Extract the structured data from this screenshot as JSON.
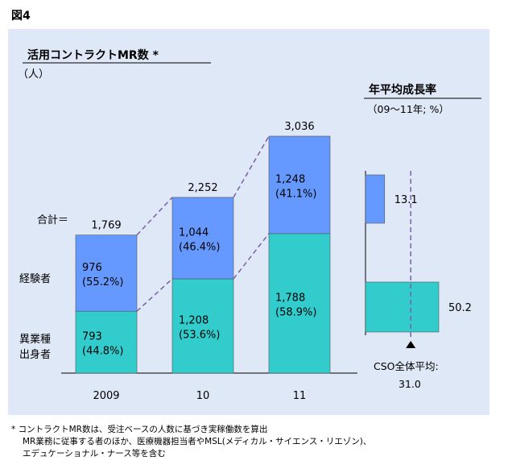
{
  "figure_label": "図4",
  "footnote": {
    "lines": [
      "* コントラクトMR数は、受注ベースの人数に基づき実稼働数を算出",
      "MR業務に従事する者のほか、医療機器担当者やMSL(メディカル・サイエンス・リエゾン)、",
      "エデュケーショナル・ナース等を含む"
    ]
  },
  "chart_data": [
    {
      "type": "bar",
      "stacked": true,
      "title": "活用コントラクトMR数 *",
      "unit_label": "（人）",
      "categories": [
        "2009",
        "10",
        "11"
      ],
      "series": [
        {
          "name": "異業種出身者",
          "label_lines": [
            "異業種",
            "出身者"
          ],
          "color": "#33cccc",
          "values": [
            793,
            1208,
            1788
          ],
          "shares": [
            "(44.8%)",
            "(53.6%)",
            "(58.9%)"
          ]
        },
        {
          "name": "経験者",
          "label_lines": [
            "経験者"
          ],
          "color": "#6699ff",
          "values": [
            976,
            1044,
            1248
          ],
          "shares": [
            "(55.2%)",
            "(46.4%)",
            "(41.1%)"
          ]
        }
      ],
      "totals": [
        1769,
        2252,
        3036
      ],
      "total_labels": [
        "1,769",
        "2,252",
        "3,036"
      ],
      "total_prefix": "合計＝",
      "value_labels": [
        [
          "793",
          "1,208",
          "1,788"
        ],
        [
          "976",
          "1,044",
          "1,248"
        ]
      ],
      "connector_lines": "dashed",
      "ylim": [
        0,
        3200
      ]
    },
    {
      "type": "bar",
      "orientation": "horizontal",
      "title": "年平均成長率",
      "subtitle": "（09～11年; %）",
      "values": [
        13.1,
        50.2
      ],
      "value_labels": [
        "13.1",
        "50.2"
      ],
      "colors": [
        "#6699ff",
        "#33cccc"
      ],
      "reference": {
        "label": "CSO全体平均:",
        "value": 31.0,
        "value_label": "31.0"
      },
      "xlim": [
        0,
        50.2
      ]
    }
  ]
}
